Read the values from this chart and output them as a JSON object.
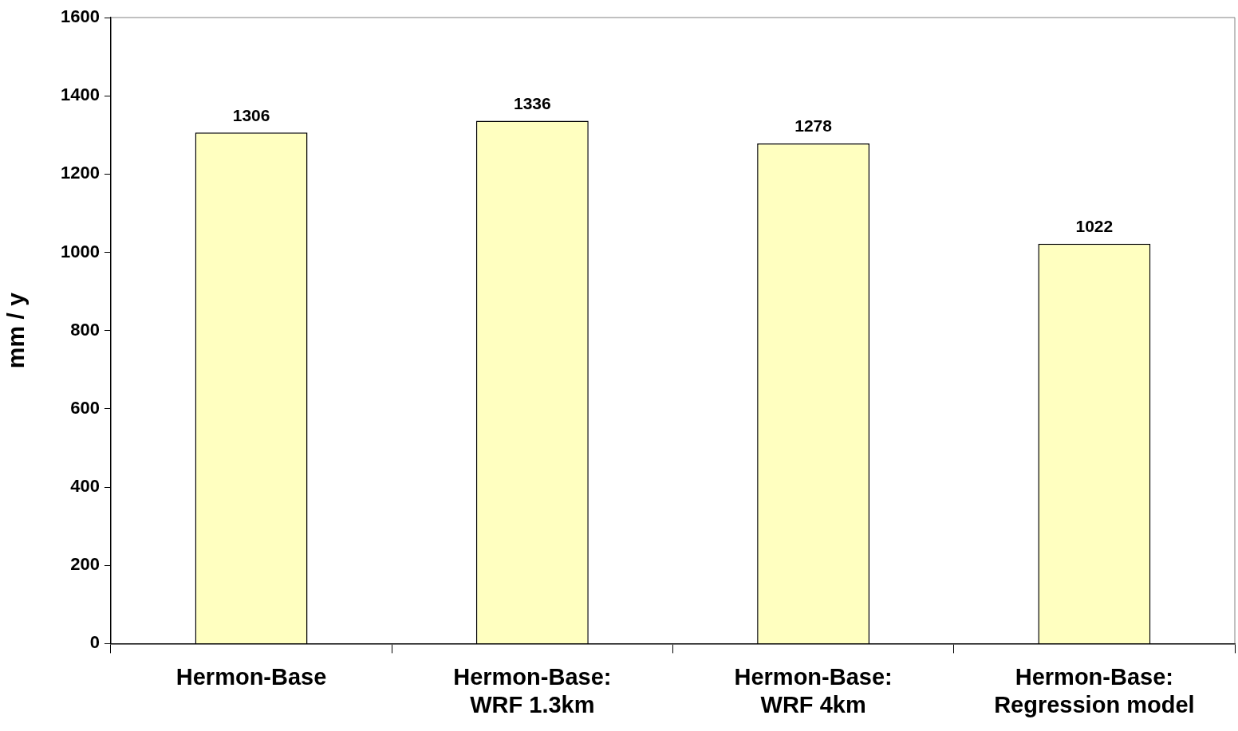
{
  "chart_data": {
    "type": "bar",
    "ylabel": "mm / y",
    "categories": [
      "Hermon-Base",
      "Hermon-Base:\nWRF 1.3km",
      "Hermon-Base:\nWRF 4km",
      "Hermon-Base:\nRegression model"
    ],
    "values": [
      1306,
      1336,
      1278,
      1022
    ],
    "color": "#ffffc0",
    "ylim": [
      0,
      1600
    ],
    "yticks": [
      0,
      200,
      400,
      600,
      800,
      1000,
      1200,
      1400,
      1600
    ],
    "grid": false,
    "legend": false,
    "data_labels": true
  }
}
